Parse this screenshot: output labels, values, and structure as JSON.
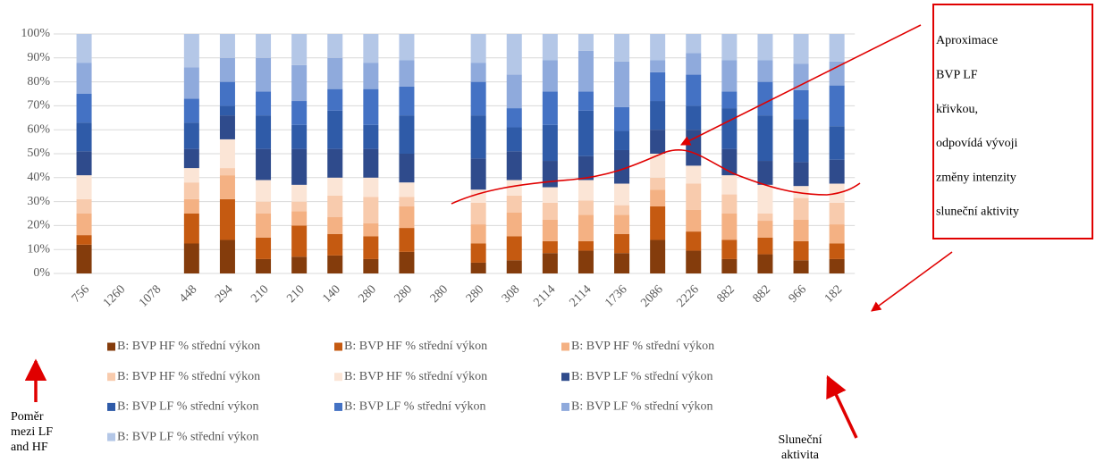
{
  "chart_data": {
    "type": "stacked_bar_100",
    "categories": [
      "756",
      "1260",
      "1078",
      "448",
      "294",
      "210",
      "210",
      "140",
      "280",
      "280",
      "280",
      "280",
      "308",
      "2114",
      "2114",
      "1736",
      "2086",
      "2226",
      "882",
      "882",
      "966",
      "182"
    ],
    "ylim": [
      0,
      100
    ],
    "yticks": [
      {
        "value": 0,
        "label": "0%"
      },
      {
        "value": 10,
        "label": "10%"
      },
      {
        "value": 20,
        "label": "20%"
      },
      {
        "value": 30,
        "label": "30%"
      },
      {
        "value": 40,
        "label": "40%"
      },
      {
        "value": 50,
        "label": "50%"
      },
      {
        "value": 60,
        "label": "60%"
      },
      {
        "value": 70,
        "label": "70%"
      },
      {
        "value": 80,
        "label": "80%"
      },
      {
        "value": 90,
        "label": "90%"
      },
      {
        "value": 100,
        "label": "100%"
      }
    ],
    "grid": true,
    "series": [
      {
        "name": "B: BVP HF % střední výkon",
        "color": "#843c0c",
        "values": [
          12,
          null,
          null,
          12.5,
          14,
          6,
          7,
          7.5,
          6,
          9,
          null,
          4.5,
          5.5,
          8.5,
          9.5,
          8.5,
          14,
          9.5,
          6,
          8,
          5.5,
          6
        ]
      },
      {
        "name": "B: BVP HF % střední výkon",
        "color": "#c55a11",
        "values": [
          4,
          null,
          null,
          12.5,
          17,
          9,
          13,
          9,
          9.5,
          10,
          null,
          8,
          10,
          5,
          4,
          8,
          14,
          8,
          8,
          7,
          8,
          6.5
        ]
      },
      {
        "name": "B: BVP HF % střední výkon",
        "color": "#f4b183",
        "values": [
          9,
          null,
          null,
          6,
          10,
          10,
          6,
          7,
          5.5,
          9,
          null,
          8,
          10,
          9,
          11,
          8,
          7,
          9,
          11,
          7,
          9,
          8
        ]
      },
      {
        "name": "B: BVP HF % střední výkon",
        "color": "#f8cbad",
        "values": [
          6,
          null,
          null,
          7,
          3,
          5,
          4,
          9,
          11,
          4,
          null,
          9,
          7,
          7,
          6,
          4,
          5,
          11,
          8,
          3,
          9,
          9
        ]
      },
      {
        "name": "B: BVP HF % střední výkon",
        "color": "#fbe5d6",
        "values": [
          10,
          null,
          null,
          6,
          12,
          9,
          7,
          7.5,
          8,
          6,
          null,
          5.5,
          6.5,
          6.5,
          8.5,
          9,
          10,
          7.5,
          8,
          12,
          5,
          8
        ]
      },
      {
        "name": "B: BVP LF % střední výkon",
        "color": "#2f4b8c",
        "values": [
          10,
          null,
          null,
          8,
          10,
          13,
          15,
          12,
          12,
          12,
          null,
          13,
          12,
          11,
          10,
          14,
          10,
          15,
          11,
          10,
          10,
          10
        ]
      },
      {
        "name": "B: BVP LF % střední výkon",
        "color": "#2f5ba8",
        "values": [
          12,
          null,
          null,
          11,
          4,
          14,
          10,
          16,
          10,
          16,
          null,
          18,
          10,
          15,
          19,
          8,
          12,
          10,
          17,
          19,
          18,
          14
        ]
      },
      {
        "name": "B: BVP LF % střední výkon",
        "color": "#4472c4",
        "values": [
          12,
          null,
          null,
          10,
          10,
          10,
          10,
          9,
          15,
          12,
          null,
          14,
          8,
          14,
          8,
          10,
          12,
          13,
          7,
          14,
          12,
          17
        ]
      },
      {
        "name": "B: BVP LF % střední výkon",
        "color": "#8faadc",
        "values": [
          13,
          null,
          null,
          13,
          10,
          14,
          15,
          13,
          11,
          11,
          null,
          8,
          14,
          13,
          17,
          19,
          5,
          9,
          13,
          9,
          11,
          10
        ]
      },
      {
        "name": "B: BVP LF % střední výkon",
        "color": "#b4c7e7",
        "values": [
          12,
          null,
          null,
          14,
          10,
          10,
          13,
          10,
          12,
          11,
          null,
          12,
          17,
          11,
          7,
          11.5,
          11,
          8,
          11,
          11,
          12.5,
          11.5
        ]
      }
    ],
    "annotations": {
      "box": [
        "Aproximace",
        "BVP LF",
        "křivkou,",
        "odpovídá vývoji",
        "změny intenzity",
        "sluneční aktivity"
      ],
      "left": [
        "Poměr",
        "mezi LF",
        "and HF"
      ],
      "bottom": [
        "Sluneční",
        "aktivita"
      ]
    }
  }
}
